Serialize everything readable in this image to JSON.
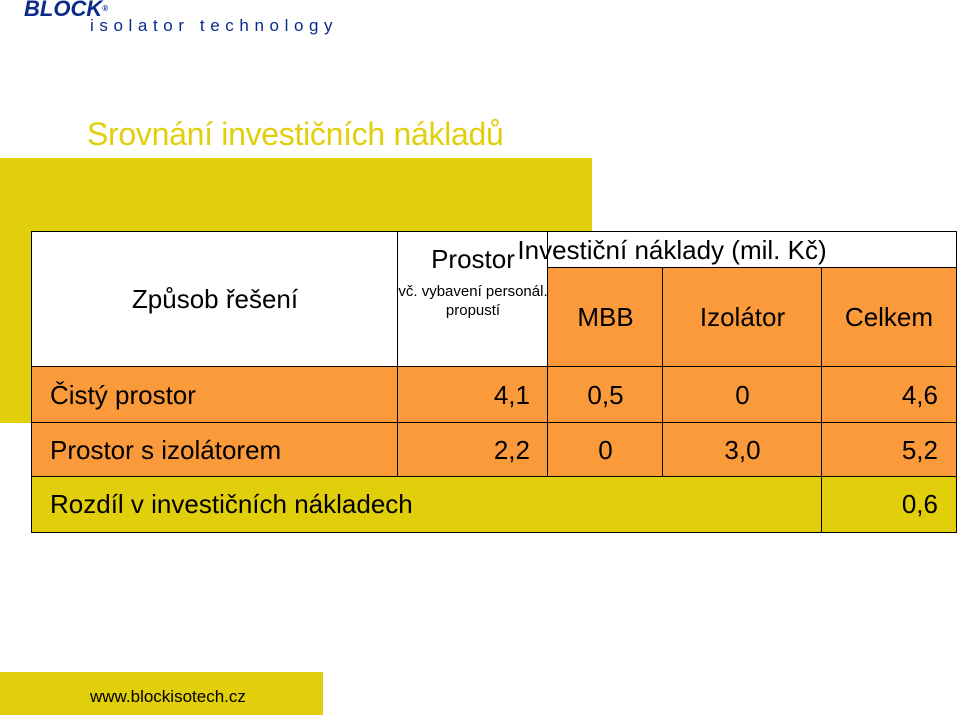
{
  "logo": {
    "brand": "BLOCK",
    "registered": "®",
    "tagline": "isolator technology"
  },
  "title": "Srovnání investičních nákladů",
  "table": {
    "header": {
      "method_label": "Způsob řešení",
      "space_label": "Prostor",
      "space_note": "vč. vybavení personál. propustí",
      "investment_label": "Investiční náklady (mil. Kč)",
      "mbb_label": "MBB",
      "isolator_label": "Izolátor",
      "total_label": "Celkem"
    },
    "rows": [
      {
        "label": "Čistý prostor",
        "space": "4,1",
        "mbb": "0,5",
        "isolator": "0",
        "total": "4,6"
      },
      {
        "label": "Prostor s izolátorem",
        "space": "2,2",
        "mbb": "0",
        "isolator": "3,0",
        "total": "5,2"
      }
    ],
    "difference": {
      "label": "Rozdíl v investičních nákladech",
      "value": "0,6"
    }
  },
  "footer": {
    "url": "www.blockisotech.cz"
  },
  "colors": {
    "yellow": "#e2cf0b",
    "orange": "#fb9a3a",
    "logo_blue": "#0b2a8a"
  }
}
